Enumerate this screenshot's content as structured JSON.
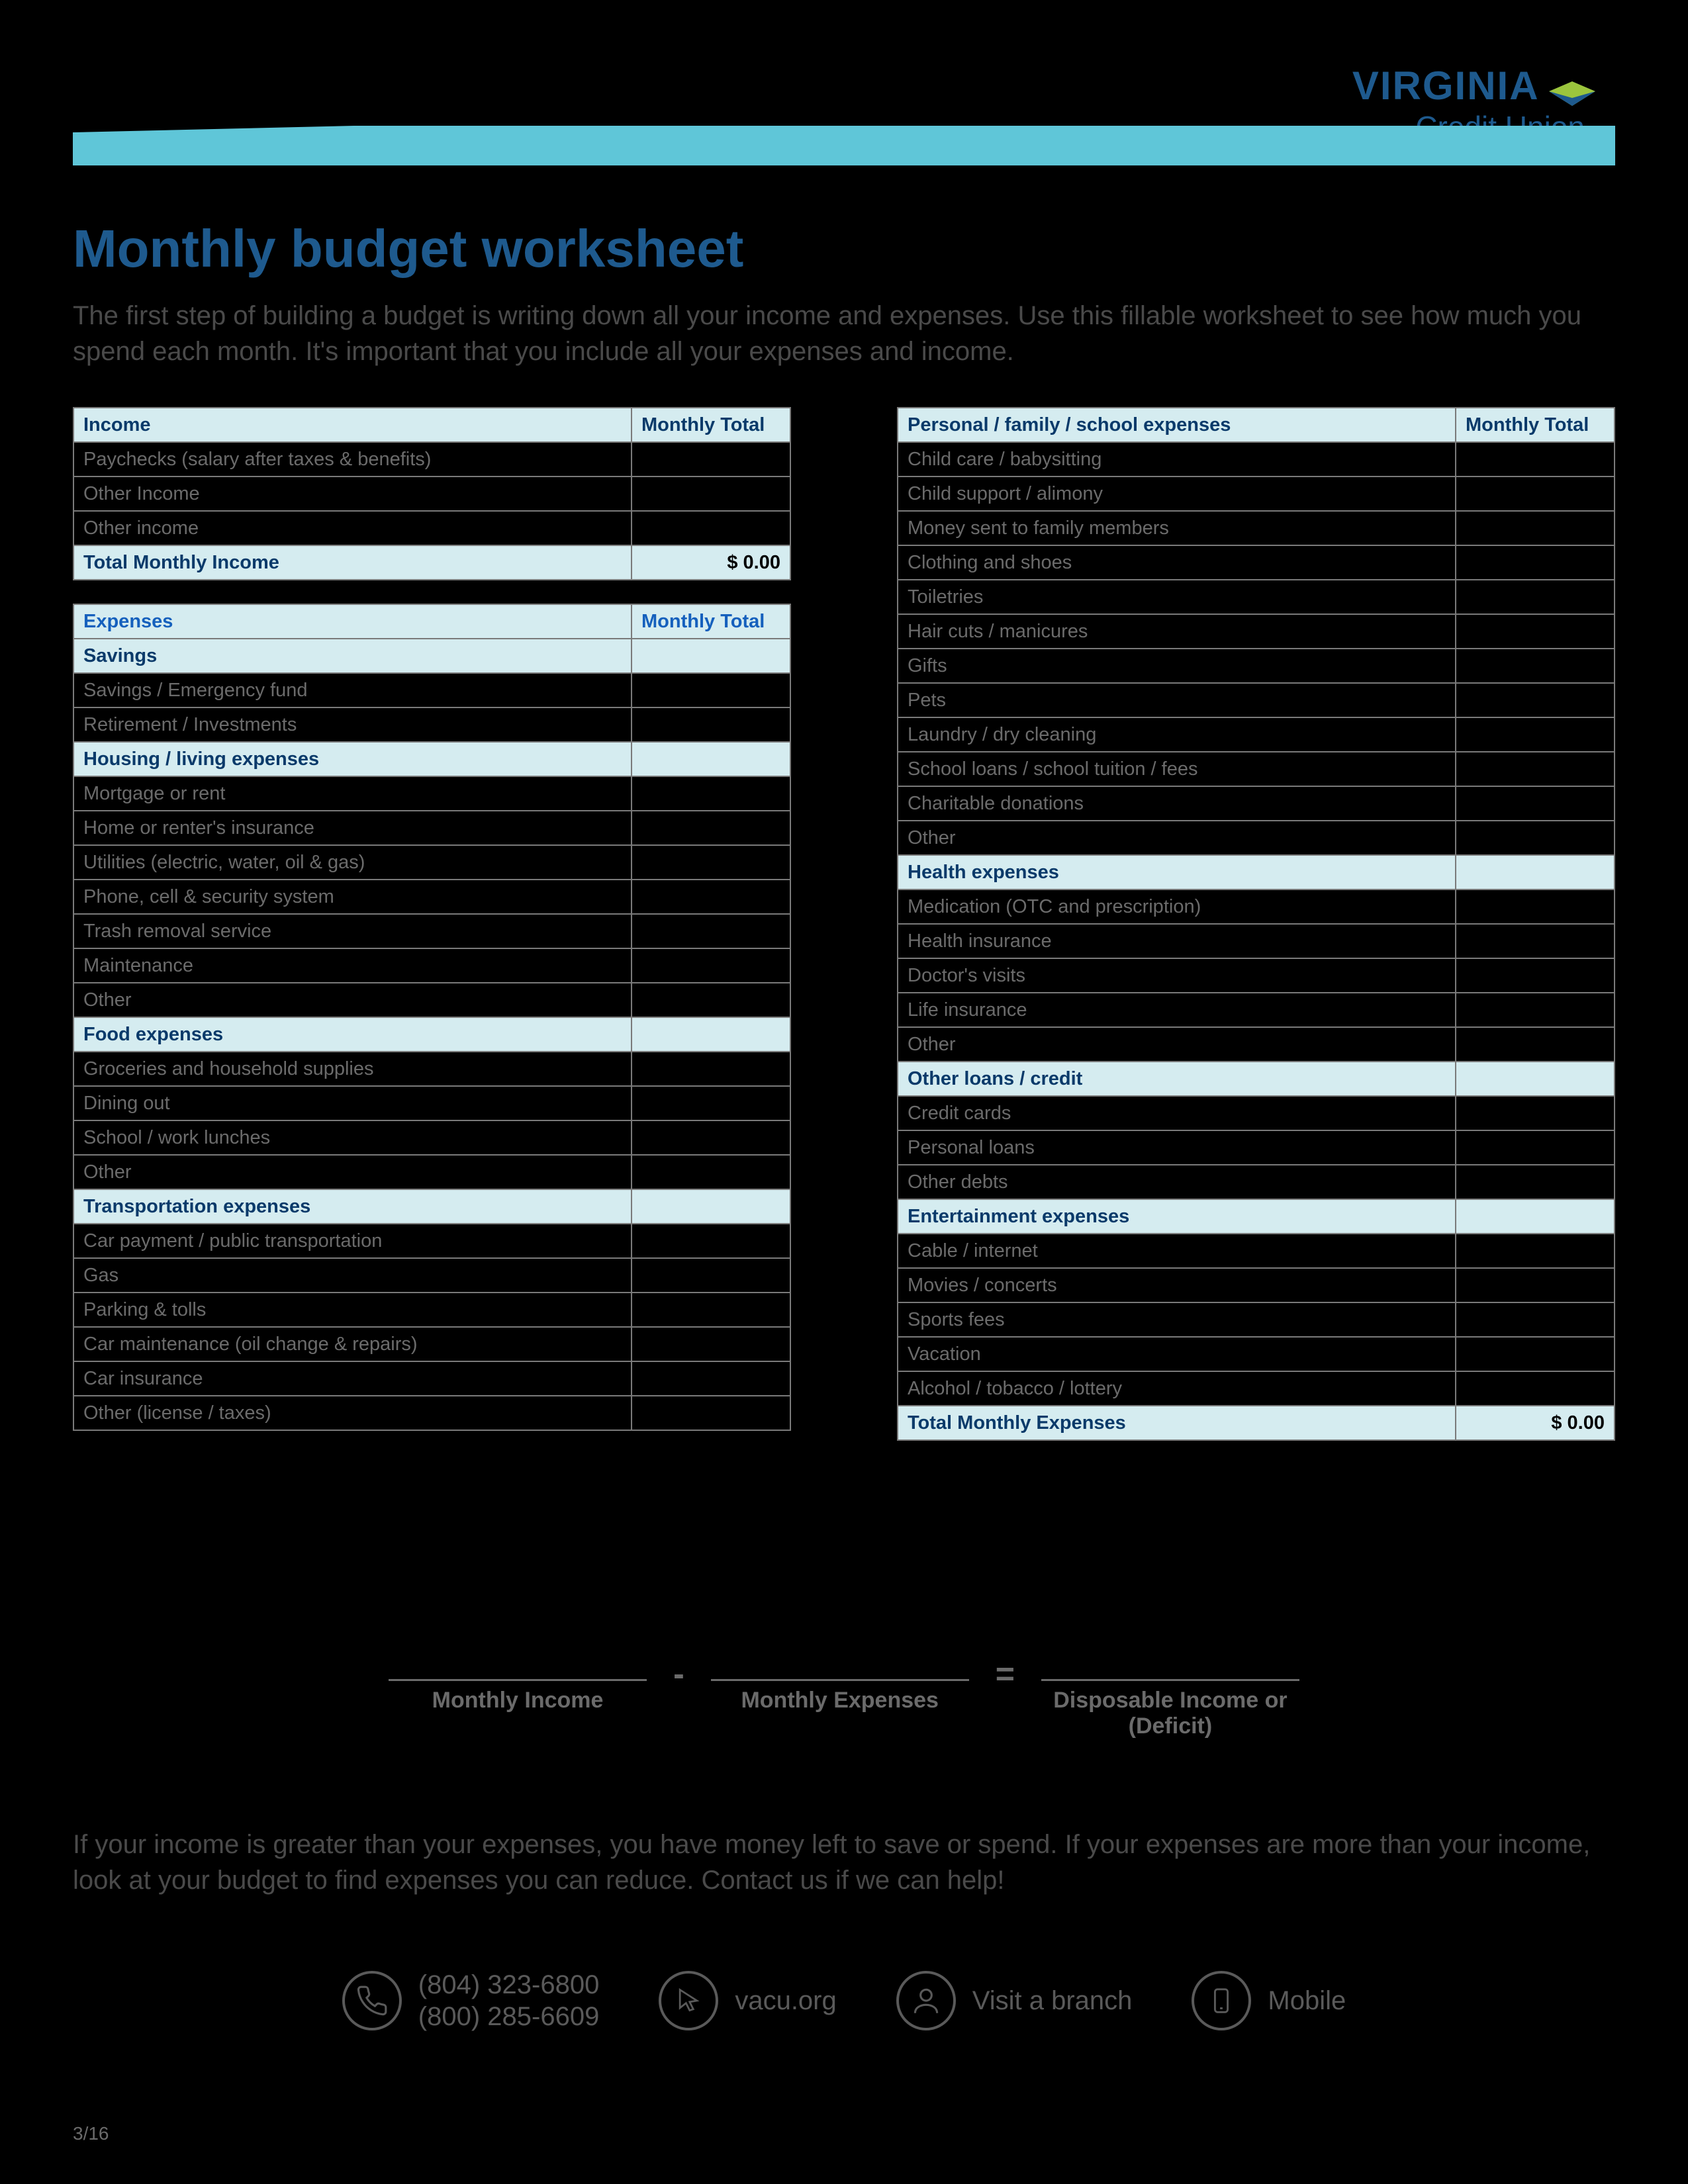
{
  "logo": {
    "line1": "VIRGINIA",
    "line2": "Credit Union"
  },
  "title": "Monthly budget worksheet",
  "intro": "The first step of building a budget is writing down all your income and expenses. Use this fillable worksheet to see how much you spend each month. It's important that you include all your expenses and income.",
  "income": {
    "header_label": "Income",
    "header_total": "Monthly Total",
    "rows": [
      "Paychecks (salary after taxes & benefits)",
      "Other Income",
      "Other income"
    ],
    "total_label": "Total Monthly Income",
    "total_value": "$ 0.00"
  },
  "expenses": {
    "header_label": "Expenses",
    "header_total": "Monthly Total",
    "sections_left": [
      {
        "title": "Savings",
        "rows": [
          "Savings / Emergency fund",
          "Retirement / Investments"
        ]
      },
      {
        "title": "Housing / living expenses",
        "rows": [
          "Mortgage or rent",
          "Home or renter's insurance",
          "Utilities (electric, water, oil & gas)",
          "Phone, cell & security system",
          "Trash removal service",
          "Maintenance",
          "Other"
        ]
      },
      {
        "title": "Food expenses",
        "rows": [
          "Groceries and household supplies",
          "Dining out",
          "School / work lunches",
          "Other"
        ]
      },
      {
        "title": "Transportation expenses",
        "rows": [
          "Car payment / public transportation",
          "Gas",
          "Parking & tolls",
          "Car maintenance (oil change & repairs)",
          "Car insurance",
          "Other (license / taxes)"
        ]
      }
    ],
    "right_header_label": "Personal / family / school expenses",
    "right_header_total": "Monthly Total",
    "sections_right": [
      {
        "title": null,
        "rows": [
          "Child care / babysitting",
          "Child support / alimony",
          "Money sent to family members",
          "Clothing and shoes",
          "Toiletries",
          "Hair cuts / manicures",
          "Gifts",
          "Pets",
          "Laundry / dry cleaning",
          "School loans / school tuition / fees",
          "Charitable donations",
          "Other"
        ]
      },
      {
        "title": "Health expenses",
        "rows": [
          "Medication (OTC and prescription)",
          "Health insurance",
          "Doctor's visits",
          "Life insurance",
          "Other"
        ]
      },
      {
        "title": "Other loans / credit",
        "rows": [
          "Credit cards",
          "Personal loans",
          "Other debts"
        ]
      },
      {
        "title": "Entertainment expenses",
        "rows": [
          "Cable / internet",
          "Movies / concerts",
          "Sports fees",
          "Vacation",
          "Alcohol / tobacco / lottery"
        ]
      }
    ],
    "total_label": "Total Monthly Expenses",
    "total_value": "$ 0.00"
  },
  "calc": {
    "income_label": "Monthly Income",
    "expenses_label": "Monthly Expenses",
    "result_label": "Disposable Income or (Deficit)",
    "minus": "-",
    "equals": "="
  },
  "outro": "If your income is greater than your expenses, you have money left to save or spend. If your expenses are more than your income, look at your budget to find expenses you can reduce. Contact us if we can help!",
  "contacts": {
    "phone1": "(804) 323-6800",
    "phone2": "(800) 285-6609",
    "web": "vacu.org",
    "branch": "Visit a branch",
    "mobile": "Mobile"
  },
  "page_number": "3/16",
  "colors": {
    "page_bg": "#000000",
    "banner_blue": "#5fc6d8",
    "heading_blue": "#1e5a8e",
    "section_bg": "#d5ecf0",
    "section_text": "#0a3a6a",
    "expenses_hdr_text": "#1560bd",
    "body_text": "#4a4a4a",
    "muted_text": "#6b6b6b",
    "border": "#7a7a7a"
  }
}
